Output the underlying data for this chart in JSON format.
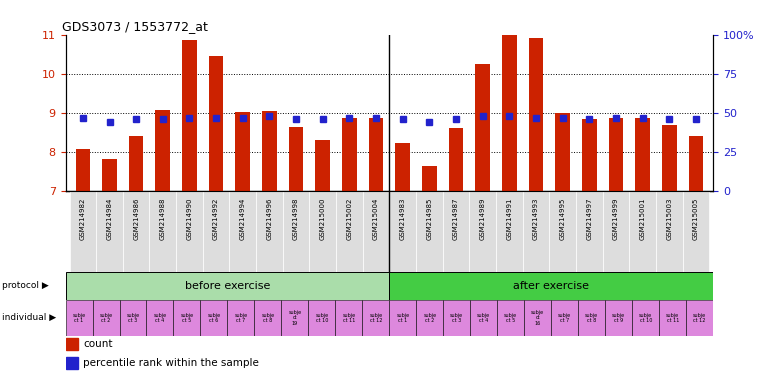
{
  "title": "GDS3073 / 1553772_at",
  "bar_labels": [
    "GSM214982",
    "GSM214984",
    "GSM214986",
    "GSM214988",
    "GSM214990",
    "GSM214992",
    "GSM214994",
    "GSM214996",
    "GSM214998",
    "GSM215000",
    "GSM215002",
    "GSM215004",
    "GSM214983",
    "GSM214985",
    "GSM214987",
    "GSM214989",
    "GSM214991",
    "GSM214993",
    "GSM214995",
    "GSM214997",
    "GSM214999",
    "GSM215001",
    "GSM215003",
    "GSM215005"
  ],
  "bar_values": [
    8.07,
    7.82,
    8.42,
    9.07,
    10.87,
    10.45,
    9.02,
    9.05,
    8.63,
    8.32,
    8.87,
    8.87,
    8.22,
    7.65,
    8.62,
    10.25,
    11.05,
    10.9,
    9.0,
    8.85,
    8.87,
    8.87,
    8.7,
    8.42
  ],
  "percentile_values": [
    47,
    44,
    46,
    46,
    47,
    47,
    47,
    48,
    46,
    46,
    47,
    47,
    46,
    44,
    46,
    48,
    48,
    47,
    47,
    46,
    47,
    47,
    46,
    46
  ],
  "ymin": 7,
  "ymax": 11,
  "yticks_left": [
    7,
    8,
    9,
    10,
    11
  ],
  "yticks_right": [
    0,
    25,
    50,
    75,
    100
  ],
  "bar_color": "#cc2200",
  "percentile_color": "#2222cc",
  "before_color": "#aaddaa",
  "after_color": "#44cc44",
  "individual_color": "#dd88dd",
  "xtick_bg": "#dddddd",
  "n_total": 24,
  "n_before": 12,
  "n_after": 12,
  "individual_labels": [
    "subje\nct 1",
    "subje\nct 2",
    "subje\nct 3",
    "subje\nct 4",
    "subje\nct 5",
    "subje\nct 6",
    "subje\nct 7",
    "subje\nct 8",
    "subje\nct\n19",
    "subje\nct 10",
    "subje\nct 11",
    "subje\nct 12",
    "subje\nct 1",
    "subje\nct 2",
    "subje\nct 3",
    "subje\nct 4",
    "subje\nct 5",
    "subje\nct\n16",
    "subje\nct 7",
    "subje\nct 8",
    "subje\nct 9",
    "subje\nct 10",
    "subje\nct 11",
    "subje\nct 12"
  ]
}
